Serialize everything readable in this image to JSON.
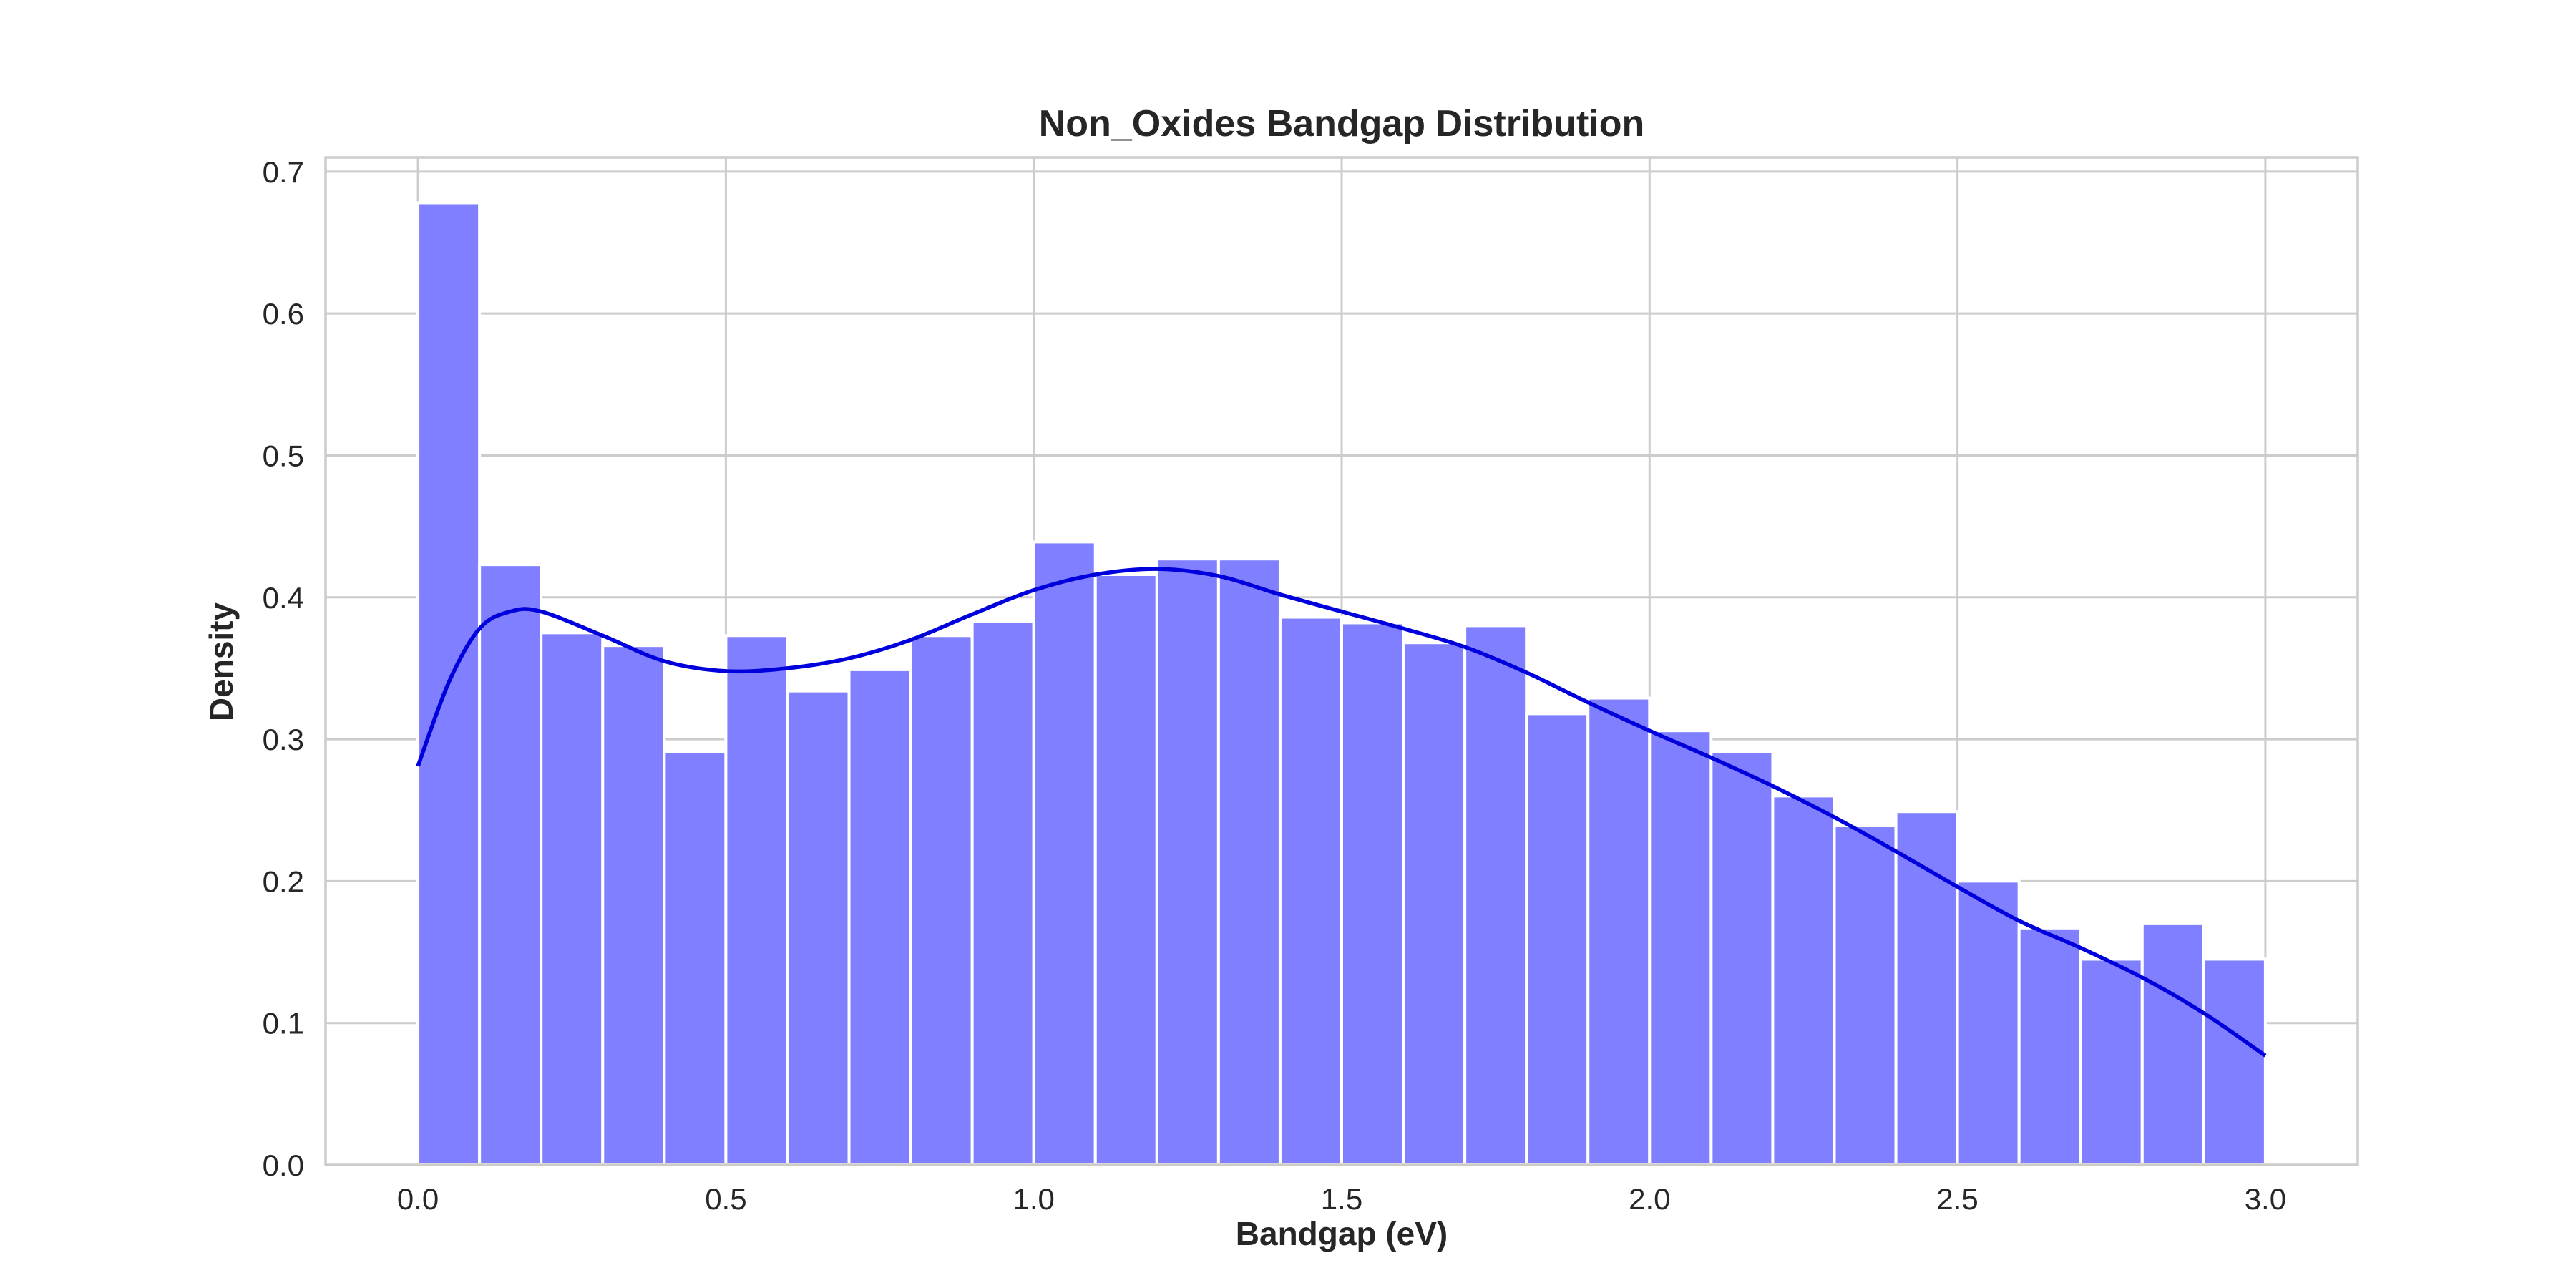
{
  "chart_data": {
    "type": "bar",
    "title": "Non_Oxides Bandgap Distribution",
    "xlabel": "Bandgap (eV)",
    "ylabel": "Density",
    "xlim": [
      -0.15,
      3.15
    ],
    "ylim": [
      0,
      0.71
    ],
    "xticks": [
      "0.0",
      "0.5",
      "1.0",
      "1.5",
      "2.0",
      "2.5",
      "3.0"
    ],
    "yticks": [
      "0.0",
      "0.1",
      "0.2",
      "0.3",
      "0.4",
      "0.5",
      "0.6",
      "0.7"
    ],
    "grid": true,
    "bin_width": 0.1,
    "bin_edges": [
      0.0,
      0.1,
      0.2,
      0.3,
      0.4,
      0.5,
      0.6,
      0.7,
      0.8,
      0.9,
      1.0,
      1.1,
      1.2,
      1.3,
      1.4,
      1.5,
      1.6,
      1.7,
      1.8,
      1.9,
      2.0,
      2.1,
      2.2,
      2.3,
      2.4,
      2.5,
      2.6,
      2.7,
      2.8,
      2.9,
      3.0
    ],
    "values": [
      0.678,
      0.423,
      0.375,
      0.366,
      0.291,
      0.373,
      0.334,
      0.349,
      0.373,
      0.383,
      0.439,
      0.416,
      0.427,
      0.427,
      0.386,
      0.382,
      0.368,
      0.38,
      0.318,
      0.329,
      0.306,
      0.291,
      0.26,
      0.239,
      0.249,
      0.2,
      0.167,
      0.145,
      0.17,
      0.145
    ],
    "kde": {
      "x": [
        0.0,
        0.05,
        0.1,
        0.15,
        0.2,
        0.3,
        0.4,
        0.5,
        0.6,
        0.7,
        0.8,
        0.9,
        1.0,
        1.1,
        1.2,
        1.3,
        1.4,
        1.5,
        1.6,
        1.7,
        1.8,
        1.9,
        2.0,
        2.1,
        2.2,
        2.3,
        2.4,
        2.5,
        2.6,
        2.7,
        2.8,
        2.9,
        3.0
      ],
      "y": [
        0.281,
        0.34,
        0.378,
        0.39,
        0.39,
        0.373,
        0.355,
        0.348,
        0.35,
        0.357,
        0.37,
        0.388,
        0.405,
        0.416,
        0.42,
        0.415,
        0.402,
        0.39,
        0.378,
        0.365,
        0.347,
        0.326,
        0.306,
        0.287,
        0.267,
        0.245,
        0.221,
        0.196,
        0.172,
        0.153,
        0.132,
        0.107,
        0.077
      ]
    },
    "colors": {
      "bar": "#7f7fff",
      "kde": "#0000dd"
    }
  }
}
